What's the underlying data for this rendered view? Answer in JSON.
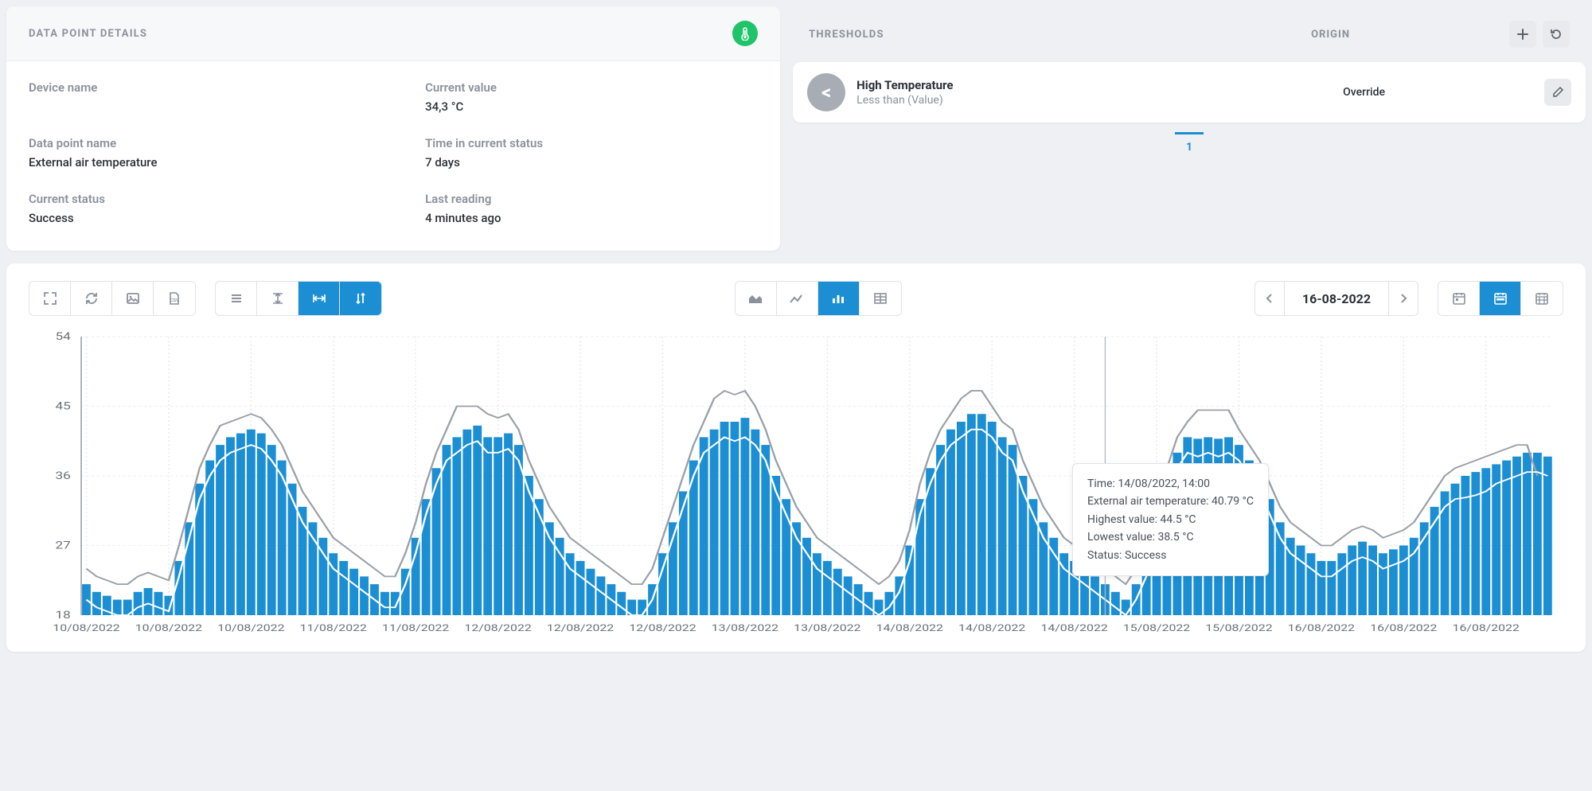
{
  "details": {
    "header": "DATA POINT DETAILS",
    "device_name_label": "Device name",
    "device_name_value": "",
    "current_value_label": "Current value",
    "current_value": "34,3 °C",
    "data_point_name_label": "Data point name",
    "data_point_name": "External air temperature",
    "time_in_status_label": "Time in current status",
    "time_in_status": "7 days",
    "current_status_label": "Current status",
    "current_status": "Success",
    "last_reading_label": "Last reading",
    "last_reading": "4 minutes ago"
  },
  "thresholds": {
    "header": "THRESHOLDS",
    "origin_header": "ORIGIN",
    "item": {
      "symbol": "<",
      "name": "High Temperature",
      "condition": "Less than (Value)",
      "origin": "Override"
    },
    "page": "1"
  },
  "toolbar": {
    "date": "16-08-2022"
  },
  "chart": {
    "type": "bar+line",
    "ymin": 18,
    "ymax": 54,
    "yticks": [
      18,
      27,
      36,
      45,
      54
    ],
    "bar_color": "#1c8fd4",
    "high_line_color": "#9aa0a8",
    "low_line_color": "#ffffff",
    "grid_color": "#e5e8ec",
    "axis_text_color": "#6b7079",
    "hover_marker_x": 99,
    "x_labels": [
      "10/08/2022",
      "10/08/2022",
      "10/08/2022",
      "11/08/2022",
      "11/08/2022",
      "12/08/2022",
      "12/08/2022",
      "12/08/2022",
      "13/08/2022",
      "13/08/2022",
      "14/08/2022",
      "14/08/2022",
      "14/08/2022",
      "15/08/2022",
      "15/08/2022",
      "16/08/2022",
      "16/08/2022",
      "16/08/2022"
    ],
    "values": [
      22,
      21,
      20.5,
      20,
      20,
      21,
      21.5,
      21,
      20.5,
      25,
      30,
      35,
      38,
      40,
      41,
      41.5,
      42,
      41.5,
      40,
      38,
      35,
      32,
      30,
      28,
      26,
      25,
      24,
      23,
      22,
      21,
      21,
      24,
      28,
      33,
      37,
      40,
      41,
      42,
      42.5,
      41,
      41,
      41.5,
      40,
      36,
      33,
      30,
      28,
      26,
      25,
      24,
      23,
      22,
      21,
      20,
      20,
      22,
      26,
      30,
      34,
      38,
      41,
      42,
      43,
      43,
      43.5,
      42,
      40,
      36,
      33,
      30,
      28,
      26,
      25,
      24,
      23,
      22,
      21,
      20,
      21,
      23,
      27,
      33,
      37,
      40,
      42,
      43,
      44,
      44,
      43,
      41,
      40,
      36,
      33,
      30,
      28,
      26,
      25,
      24,
      23,
      22,
      21,
      20,
      22,
      25,
      30,
      35,
      39,
      41,
      40.8,
      41,
      40.8,
      41,
      40,
      38,
      36,
      33,
      30,
      28,
      27,
      26,
      25,
      25,
      26,
      27,
      27.5,
      27,
      26,
      26.5,
      27,
      28,
      30,
      32,
      34,
      35,
      36,
      36.5,
      37,
      37.5,
      38,
      38.5,
      39,
      39,
      38.5
    ],
    "high": [
      24,
      23,
      22.5,
      22,
      22,
      23,
      23.5,
      23,
      22.5,
      27,
      32,
      37,
      40,
      42.5,
      43,
      43.5,
      44,
      43.5,
      42,
      40,
      37,
      34,
      32,
      30,
      28,
      27,
      26,
      25,
      24,
      23,
      23,
      26,
      30,
      35,
      39,
      42,
      45,
      45,
      45,
      44,
      43.5,
      44,
      42,
      38,
      35,
      32,
      30,
      28,
      27,
      26,
      25,
      24,
      23,
      22,
      22,
      24,
      28,
      32,
      36,
      40,
      43,
      46,
      47,
      46.5,
      47,
      45,
      42,
      38,
      35,
      32,
      30,
      28,
      27,
      26,
      25,
      24,
      23,
      22,
      23,
      25,
      29,
      35,
      39,
      42,
      44,
      46,
      47,
      47,
      45,
      43,
      42,
      38,
      35,
      32,
      30,
      28,
      27,
      26,
      25,
      24,
      23,
      22,
      24,
      27,
      32,
      37,
      41,
      43,
      44.5,
      44.5,
      44.5,
      44.5,
      42,
      40,
      38,
      35,
      32,
      30,
      29,
      28,
      27,
      27,
      28,
      29,
      29.5,
      29,
      28,
      28.5,
      29,
      30,
      32,
      34,
      36,
      37,
      37.5,
      38,
      38.5,
      39,
      39.5,
      40,
      40,
      36
    ],
    "low": [
      20,
      19,
      18.5,
      18,
      18,
      19,
      19.5,
      19,
      18.5,
      23,
      28,
      33,
      36,
      38,
      39,
      39.5,
      40,
      39.5,
      38,
      36,
      33,
      30,
      28,
      26,
      24,
      23,
      22,
      21,
      20,
      19,
      19,
      22,
      26,
      31,
      35,
      38,
      39,
      40,
      40.5,
      39,
      39,
      39.5,
      38,
      34,
      31,
      28,
      26,
      24,
      23,
      22,
      21,
      20,
      19,
      18,
      18,
      20,
      24,
      28,
      32,
      36,
      39,
      40,
      41,
      40.5,
      41,
      40,
      38,
      34,
      31,
      28,
      26,
      24,
      23,
      22,
      21,
      20,
      19,
      18,
      19,
      21,
      25,
      31,
      35,
      38,
      40,
      41,
      42,
      42,
      41,
      39,
      38,
      34,
      31,
      28,
      26,
      24,
      23,
      22,
      21,
      20,
      19,
      18,
      20,
      23,
      28,
      33,
      37,
      39,
      38.5,
      39,
      38.5,
      39,
      38,
      36,
      34,
      31,
      28,
      26,
      25,
      24,
      23,
      23,
      24,
      25,
      25.5,
      25,
      24,
      24.5,
      25,
      26,
      28,
      30,
      32,
      33,
      33.2,
      33.5,
      34,
      35,
      35.5,
      36,
      36.5,
      36.5,
      36
    ]
  },
  "tooltip": {
    "time_label": "Time:",
    "time": "14/08/2022, 14:00",
    "temp_label": "External air temperature:",
    "temp": "40.79 °C",
    "high_label": "Highest value:",
    "high": "44.5 °C",
    "low_label": "Lowest value:",
    "low": "38.5 °C",
    "status_label": "Status:",
    "status": "Success"
  }
}
